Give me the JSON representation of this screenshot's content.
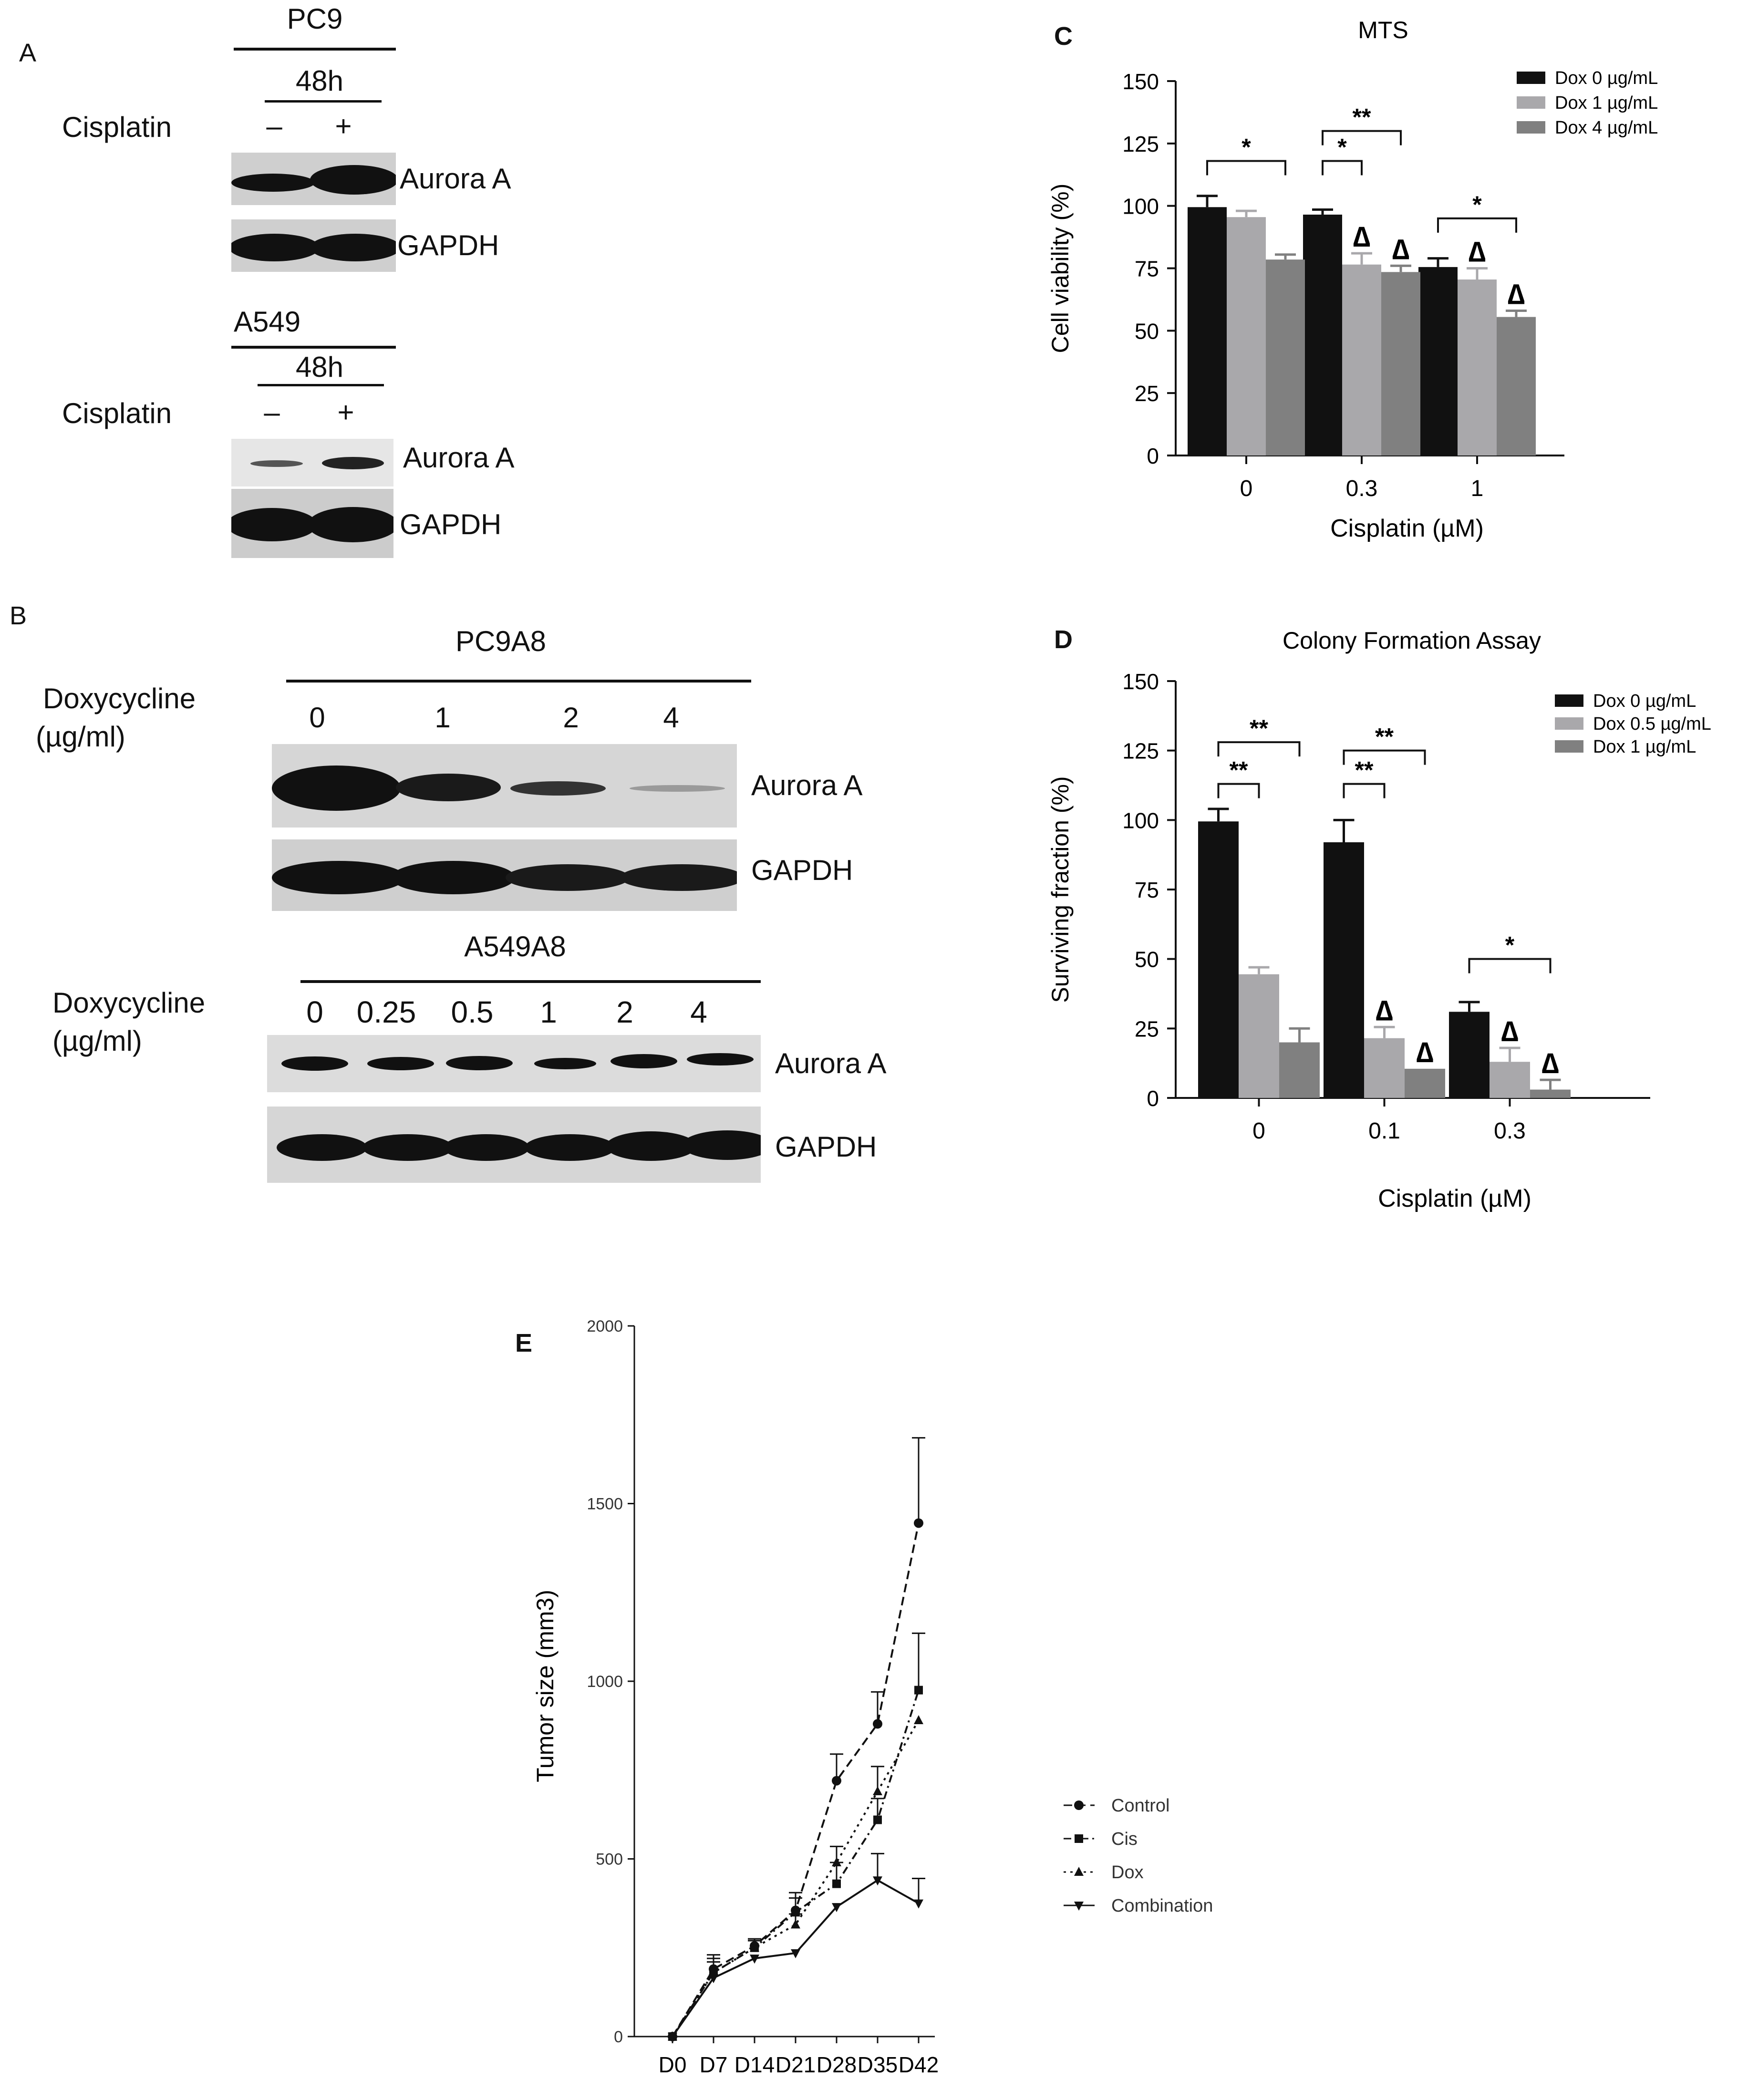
{
  "panel_a": {
    "letter": "A",
    "pc9": {
      "cell": "PC9",
      "time": "48h",
      "treatment": "Cisplatin",
      "lanes": [
        "–",
        "+"
      ],
      "bands": [
        "Aurora A",
        "GAPDH"
      ]
    },
    "a549": {
      "cell": "A549",
      "time": "48h",
      "treatment": "Cisplatin",
      "lanes": [
        "–",
        "+"
      ],
      "bands": [
        "Aurora A",
        "GAPDH"
      ]
    }
  },
  "panel_b": {
    "letter": "B",
    "pc9a8": {
      "cell": "PC9A8",
      "treatment": "Doxycycline",
      "unit": "(µg/ml)",
      "lanes": [
        "0",
        "1",
        "2",
        "4"
      ],
      "bands": [
        "Aurora A",
        "GAPDH"
      ]
    },
    "a549a8": {
      "cell": "A549A8",
      "treatment": "Doxycycline",
      "unit": "(µg/ml)",
      "lanes": [
        "0",
        "0.25",
        "0.5",
        "1",
        "2",
        "4"
      ],
      "bands": [
        "Aurora A",
        "GAPDH"
      ]
    }
  },
  "colors": {
    "black_bar": "#111111",
    "light_bar": "#a9a8ab",
    "mid_bar": "#808080"
  },
  "chart_data": [
    {
      "panel": "C",
      "type": "bar",
      "title": "MTS",
      "xlabel": "Cisplatin (µM)",
      "ylabel": "Cell viability (%)",
      "categories": [
        "0",
        "0.3",
        "1"
      ],
      "ylim": [
        0,
        150
      ],
      "yticks": [
        0,
        25,
        50,
        75,
        100,
        125,
        150
      ],
      "legend_position": "top-right",
      "series": [
        {
          "name": "Dox 0 µg/mL",
          "color": "#111111",
          "values": [
            99.5,
            96.5,
            75.5
          ],
          "errors": [
            4.5,
            2,
            3.5
          ]
        },
        {
          "name": "Dox 1 µg/mL",
          "color": "#a9a8ab",
          "values": [
            95.5,
            76.5,
            70.5
          ],
          "errors": [
            2.5,
            4.5,
            4.5
          ]
        },
        {
          "name": "Dox 4 µg/mL",
          "color": "#808080",
          "values": [
            78.5,
            73.5,
            55.5
          ],
          "errors": [
            2,
            2.5,
            2.5
          ]
        }
      ],
      "significance": [
        {
          "label": "*",
          "group": 0,
          "from": 0,
          "to": 2,
          "y": 118
        },
        {
          "label": "*",
          "group": 1,
          "from": 0,
          "to": 1,
          "y": 118
        },
        {
          "label": "**",
          "group": 1,
          "from": 0,
          "to": 2,
          "y": 130
        },
        {
          "label": "*",
          "group": 2,
          "from": 0,
          "to": 2,
          "y": 95
        }
      ],
      "markers": [
        {
          "label": "∆",
          "group": 1,
          "series": 1
        },
        {
          "label": "∆",
          "group": 1,
          "series": 2
        },
        {
          "label": "∆",
          "group": 2,
          "series": 1
        },
        {
          "label": "∆",
          "group": 2,
          "series": 2
        }
      ]
    },
    {
      "panel": "D",
      "type": "bar",
      "title": "Colony Formation Assay",
      "xlabel": "Cisplatin (µM)",
      "ylabel": "Surviving fraction (%)",
      "categories": [
        "0",
        "0.1",
        "0.3"
      ],
      "ylim": [
        0,
        150
      ],
      "yticks": [
        0,
        25,
        50,
        75,
        100,
        125,
        150
      ],
      "legend_position": "top-right",
      "series": [
        {
          "name": "Dox 0 µg/mL",
          "color": "#111111",
          "values": [
            99.5,
            92,
            31
          ],
          "errors": [
            4.5,
            8,
            3.5
          ]
        },
        {
          "name": "Dox  0.5 µg/mL",
          "color": "#a9a8ab",
          "values": [
            44.5,
            21.5,
            13
          ],
          "errors": [
            2.5,
            4,
            5
          ]
        },
        {
          "name": "Dox 1 µg/mL",
          "color": "#808080",
          "values": [
            20,
            10.5,
            3
          ],
          "errors": [
            5,
            0,
            3.5
          ]
        }
      ],
      "significance": [
        {
          "label": "**",
          "group": 0,
          "from": 0,
          "to": 1,
          "y": 113
        },
        {
          "label": "**",
          "group": 0,
          "from": 0,
          "to": 2,
          "y": 128
        },
        {
          "label": "**",
          "group": 1,
          "from": 0,
          "to": 1,
          "y": 113
        },
        {
          "label": "**",
          "group": 1,
          "from": 0,
          "to": 2,
          "y": 125
        },
        {
          "label": "*",
          "group": 2,
          "from": 0,
          "to": 2,
          "y": 50
        }
      ],
      "markers": [
        {
          "label": "∆",
          "group": 1,
          "series": 1
        },
        {
          "label": "∆",
          "group": 1,
          "series": 2
        },
        {
          "label": "∆",
          "group": 2,
          "series": 1
        },
        {
          "label": "∆",
          "group": 2,
          "series": 2
        }
      ]
    },
    {
      "panel": "E",
      "type": "line",
      "title": "",
      "xlabel": "",
      "ylabel": "Tumor size (mm3)",
      "categories": [
        "D0",
        "D7",
        "D14",
        "D21",
        "D28",
        "D35",
        "D42"
      ],
      "ylim": [
        0,
        2000
      ],
      "yticks": [
        0,
        500,
        1000,
        1500,
        2000
      ],
      "legend_position": "right",
      "series": [
        {
          "name": "Control",
          "marker": "circle",
          "dash": "dashed",
          "values": [
            0,
            190,
            255,
            355,
            720,
            880,
            1445
          ],
          "errors": [
            0,
            40,
            20,
            50,
            75,
            90,
            240
          ]
        },
        {
          "name": "Cis",
          "marker": "square",
          "dash": "dashdot",
          "values": [
            0,
            180,
            250,
            350,
            430,
            610,
            975
          ],
          "errors": [
            0,
            40,
            20,
            40,
            60,
            60,
            160
          ]
        },
        {
          "name": "Dox",
          "marker": "triangle-up",
          "dash": "dotted",
          "values": [
            0,
            180,
            250,
            315,
            490,
            690,
            890
          ],
          "errors": [
            0,
            30,
            20,
            30,
            45,
            70,
            0
          ]
        },
        {
          "name": "Combination",
          "marker": "triangle-down",
          "dash": "solid",
          "values": [
            0,
            165,
            220,
            235,
            365,
            440,
            375
          ],
          "errors": [
            0,
            0,
            0,
            0,
            0,
            75,
            70
          ]
        }
      ]
    }
  ],
  "panel_e_letter": "E"
}
